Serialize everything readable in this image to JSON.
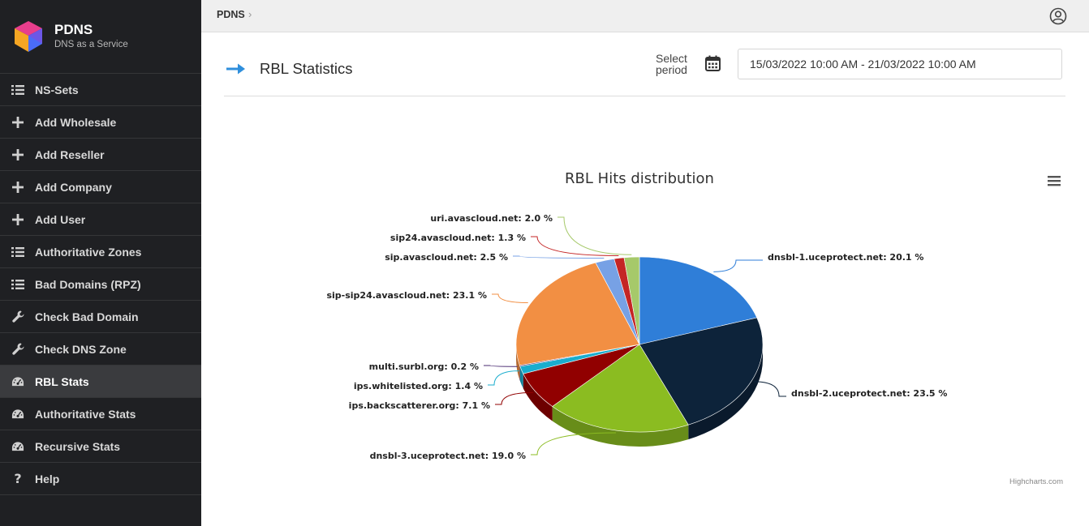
{
  "brand": {
    "title": "PDNS",
    "subtitle": "DNS as a Service"
  },
  "nav": [
    {
      "label": "NS-Sets",
      "icon": "list-icon",
      "active": false
    },
    {
      "label": "Add Wholesale",
      "icon": "plus-icon",
      "active": false
    },
    {
      "label": "Add Reseller",
      "icon": "plus-icon",
      "active": false
    },
    {
      "label": "Add Company",
      "icon": "plus-icon",
      "active": false
    },
    {
      "label": "Add User",
      "icon": "plus-icon",
      "active": false
    },
    {
      "label": "Authoritative Zones",
      "icon": "list-icon",
      "active": false
    },
    {
      "label": "Bad Domains (RPZ)",
      "icon": "list-icon",
      "active": false
    },
    {
      "label": "Check Bad Domain",
      "icon": "wrench-icon",
      "active": false
    },
    {
      "label": "Check DNS Zone",
      "icon": "wrench-icon",
      "active": false
    },
    {
      "label": "RBL Stats",
      "icon": "gauge-icon",
      "active": true
    },
    {
      "label": "Authoritative Stats",
      "icon": "gauge-icon",
      "active": false
    },
    {
      "label": "Recursive Stats",
      "icon": "gauge-icon",
      "active": false
    },
    {
      "label": "Help",
      "icon": "question-icon",
      "active": false
    }
  ],
  "breadcrumb": {
    "root": "PDNS"
  },
  "page": {
    "title": "RBL Statistics",
    "period_label": "Select period",
    "date_range": "15/03/2022 10:00 AM - 21/03/2022 10:00 AM"
  },
  "chart_credits": "Highcharts.com",
  "chart_data": {
    "type": "pie",
    "title": "RBL Hits distribution",
    "unit": "%",
    "slices": [
      {
        "name": "dnsbl-1.uceprotect.net",
        "value": 20.1,
        "color": "#2f7ed8"
      },
      {
        "name": "dnsbl-2.uceprotect.net",
        "value": 23.5,
        "color": "#0d233a"
      },
      {
        "name": "dnsbl-3.uceprotect.net",
        "value": 19.0,
        "color": "#8bbc21"
      },
      {
        "name": "ips.backscatterer.org",
        "value": 7.1,
        "color": "#910000"
      },
      {
        "name": "ips.whitelisted.org",
        "value": 1.4,
        "color": "#1aadce"
      },
      {
        "name": "multi.surbl.org",
        "value": 0.2,
        "color": "#492970"
      },
      {
        "name": "sip-sip24.avascloud.net",
        "value": 23.1,
        "color": "#f28f43"
      },
      {
        "name": "sip.avascloud.net",
        "value": 2.5,
        "color": "#77a1e5"
      },
      {
        "name": "sip24.avascloud.net",
        "value": 1.3,
        "color": "#c42525"
      },
      {
        "name": "uri.avascloud.net",
        "value": 2.0,
        "color": "#a6c96a"
      }
    ]
  }
}
